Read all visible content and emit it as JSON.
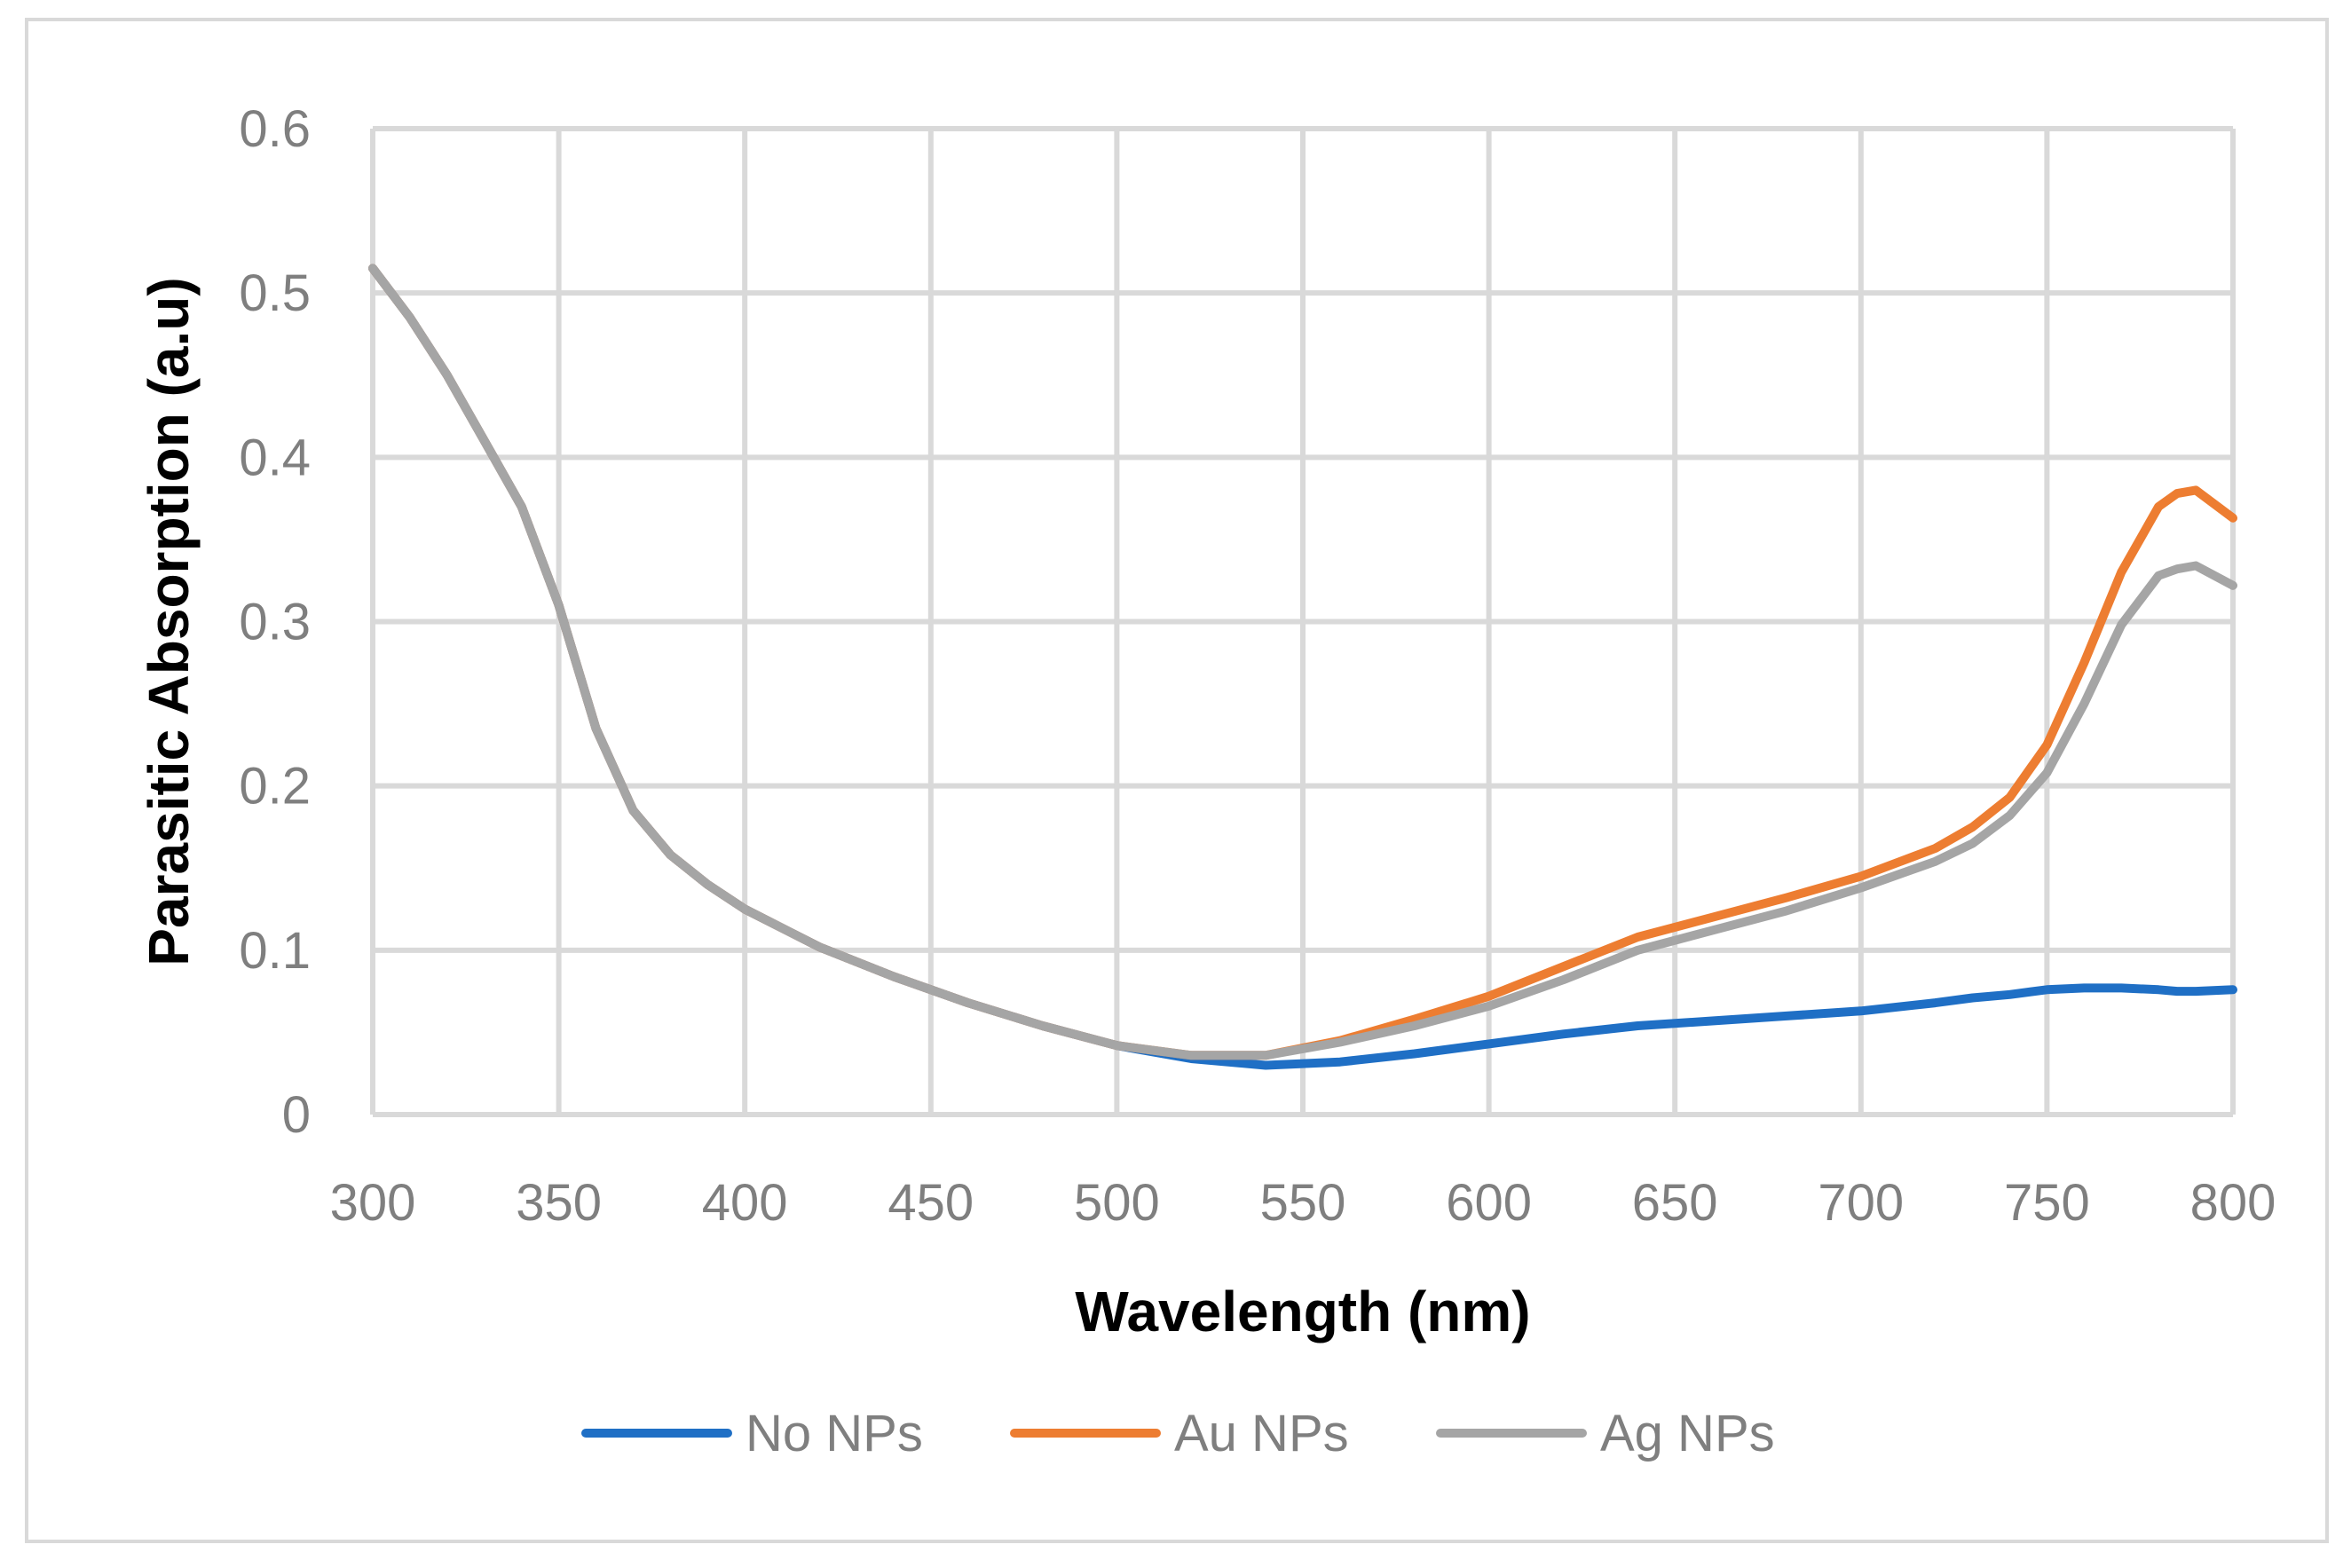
{
  "chart_data": {
    "type": "line",
    "title": "",
    "xlabel": "Wavelength (nm)",
    "ylabel": "Parasitic Absorption (a.u)",
    "xlim": [
      300,
      800
    ],
    "ylim": [
      0,
      0.6
    ],
    "x_ticks": [
      300,
      350,
      400,
      450,
      500,
      550,
      600,
      650,
      700,
      750,
      800
    ],
    "x_tick_labels": [
      "300",
      "350",
      "400",
      "450",
      "500",
      "550",
      "600",
      "650",
      "700",
      "750",
      "800"
    ],
    "y_ticks": [
      0,
      0.1,
      0.2,
      0.3,
      0.4,
      0.5,
      0.6
    ],
    "y_tick_labels": [
      "0",
      "0.1",
      "0.2",
      "0.3",
      "0.4",
      "0.5",
      "0.6"
    ],
    "grid": true,
    "legend_position": "bottom",
    "x": [
      300,
      310,
      320,
      330,
      340,
      350,
      360,
      370,
      380,
      390,
      400,
      420,
      440,
      460,
      480,
      500,
      520,
      540,
      560,
      580,
      600,
      620,
      640,
      660,
      680,
      700,
      720,
      730,
      740,
      750,
      760,
      770,
      780,
      785,
      790,
      800
    ],
    "series": [
      {
        "name": "No NPs",
        "color": "#1f6fc5",
        "values": [
          0.515,
          0.485,
          0.45,
          0.41,
          0.37,
          0.31,
          0.235,
          0.185,
          0.158,
          0.14,
          0.125,
          0.102,
          0.084,
          0.068,
          0.054,
          0.042,
          0.034,
          0.03,
          0.032,
          0.037,
          0.043,
          0.049,
          0.054,
          0.057,
          0.06,
          0.063,
          0.068,
          0.071,
          0.073,
          0.076,
          0.077,
          0.077,
          0.076,
          0.075,
          0.075,
          0.076
        ]
      },
      {
        "name": "Au NPs",
        "color": "#ed7d31",
        "values": [
          0.515,
          0.485,
          0.45,
          0.41,
          0.37,
          0.31,
          0.235,
          0.185,
          0.158,
          0.14,
          0.125,
          0.102,
          0.084,
          0.068,
          0.054,
          0.042,
          0.036,
          0.036,
          0.045,
          0.058,
          0.072,
          0.09,
          0.108,
          0.12,
          0.132,
          0.145,
          0.162,
          0.175,
          0.193,
          0.225,
          0.275,
          0.33,
          0.37,
          0.378,
          0.38,
          0.363
        ]
      },
      {
        "name": "Ag NPs",
        "color": "#a5a5a5",
        "values": [
          0.515,
          0.485,
          0.45,
          0.41,
          0.37,
          0.31,
          0.235,
          0.185,
          0.158,
          0.14,
          0.125,
          0.102,
          0.084,
          0.068,
          0.054,
          0.042,
          0.036,
          0.036,
          0.044,
          0.054,
          0.066,
          0.082,
          0.1,
          0.112,
          0.124,
          0.138,
          0.154,
          0.165,
          0.182,
          0.208,
          0.25,
          0.298,
          0.328,
          0.332,
          0.334,
          0.322
        ]
      }
    ]
  }
}
